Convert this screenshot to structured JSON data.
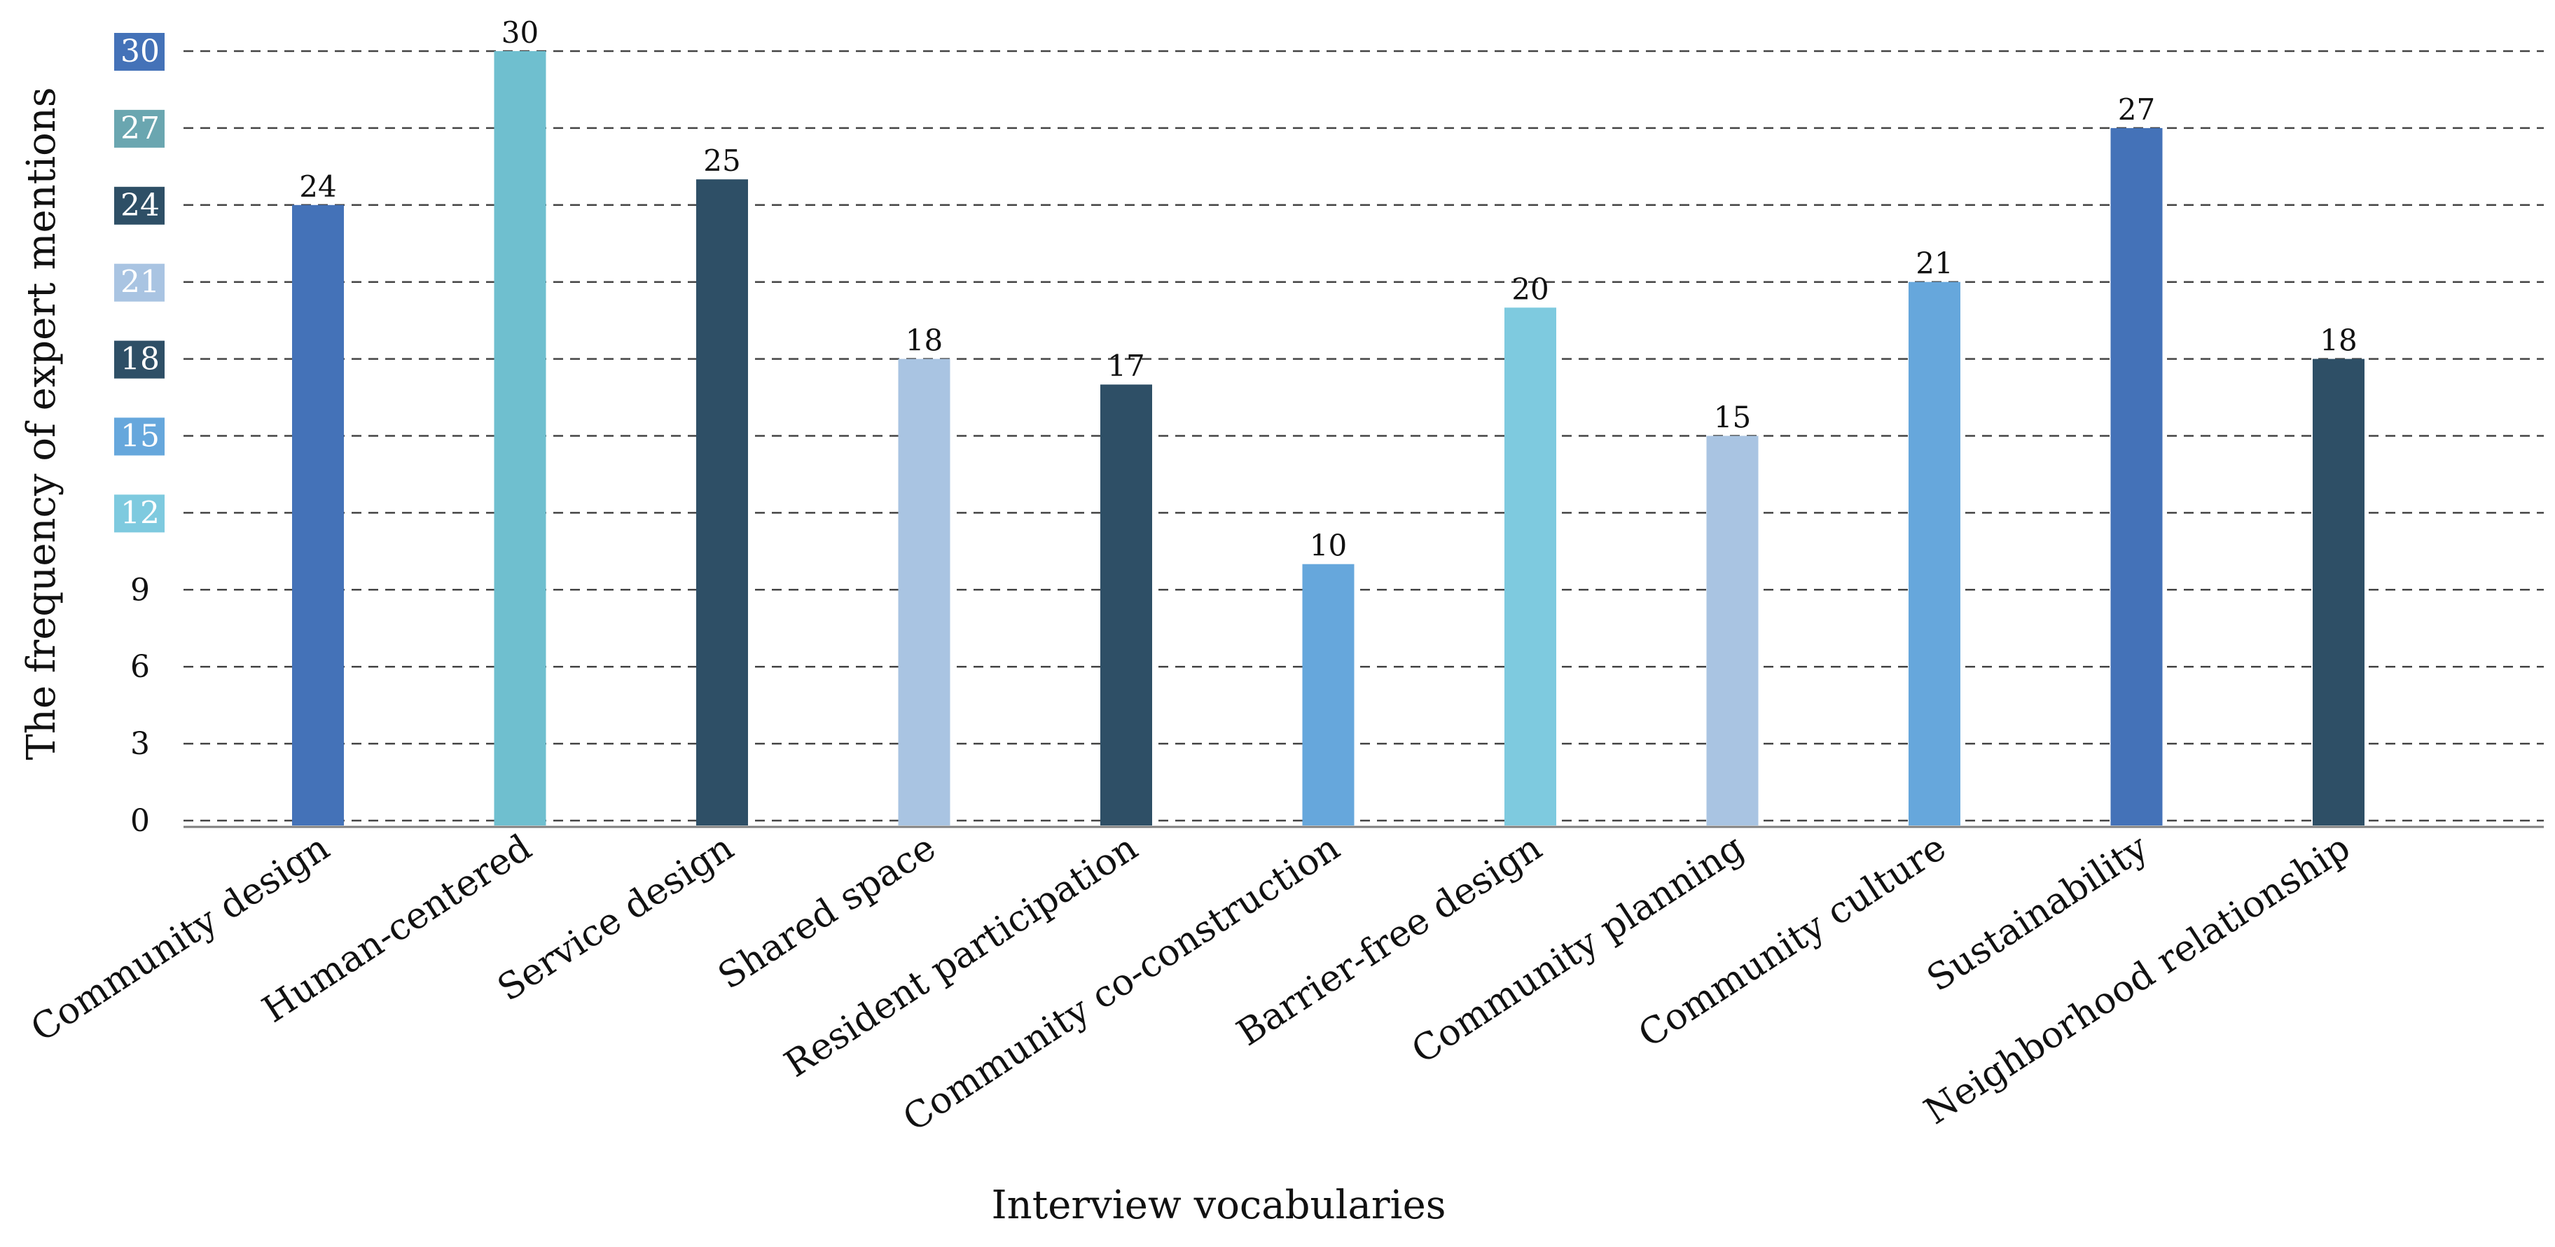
{
  "chart_data": {
    "type": "bar",
    "title": "",
    "xlabel": "Interview vocabularies",
    "ylabel": "The frequency of expert mentions",
    "categories": [
      "Community design",
      "Human-centered",
      "Service design",
      "Shared space",
      "Resident participation",
      "Community co-construction",
      "Barrier-free design",
      "Community planning",
      "Community culture",
      "Sustainability",
      "Neighborhood relationship"
    ],
    "values": [
      24,
      30,
      25,
      18,
      17,
      10,
      20,
      15,
      21,
      27,
      18
    ],
    "bar_colors": [
      "#4472b8",
      "#6fbfcf",
      "#2e4f66",
      "#a9c4e2",
      "#2e4f66",
      "#66a7dc",
      "#7ecadf",
      "#a9c4e2",
      "#66a7dc",
      "#4472b8",
      "#2e4f66"
    ],
    "ylim": [
      0,
      30
    ],
    "yticks": [
      0,
      3,
      6,
      9,
      12,
      15,
      18,
      21,
      24,
      27,
      30
    ],
    "ytick_labels": [
      "0",
      "3",
      "6",
      "9",
      "12",
      "15",
      "18",
      "21",
      "24",
      "27",
      "30"
    ],
    "ytick_badges": {
      "12": "#7ecadf",
      "15": "#66a7dc",
      "18": "#2e4f66",
      "21": "#a9c4e2",
      "24": "#2e4f66",
      "27": "#6aa6b0",
      "30": "#4472b8"
    },
    "grid": true,
    "grid_style": "dashed"
  }
}
